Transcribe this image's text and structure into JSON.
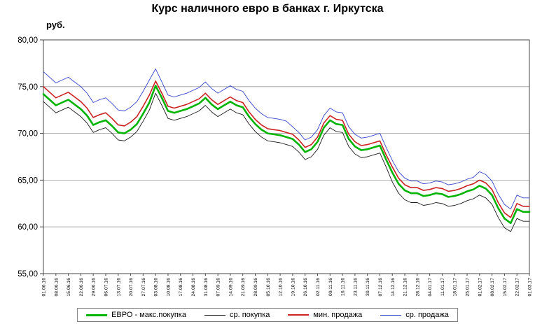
{
  "chart_data": {
    "type": "line",
    "title": "Курс наличного евро в банках г. Иркутска",
    "ylabel": "руб.",
    "ylim": [
      55,
      80
    ],
    "ytick_step": 5,
    "ytick_labels": [
      "55,00",
      "60,00",
      "65,00",
      "70,00",
      "75,00",
      "80,00"
    ],
    "grid": "horizontal",
    "legend_position": "bottom",
    "x_tick_labels": [
      "01.06.16",
      "08.06.16",
      "15.06.16",
      "22.06.16",
      "29.06.16",
      "06.07.16",
      "13.07.16",
      "20.07.16",
      "27.07.16",
      "03.08.16",
      "10.08.16",
      "17.08.16",
      "24.08.16",
      "31.08.16",
      "07.09.16",
      "14.09.16",
      "21.09.16",
      "28.09.16",
      "05.10.16",
      "12.10.16",
      "19.10.16",
      "26.10.16",
      "02.11.16",
      "09.11.16",
      "16.11.16",
      "23.11.16",
      "30.11.16",
      "07.12.16",
      "14.12.16",
      "21.12.16",
      "28.12.16",
      "04.01.17",
      "11.01.17",
      "18.01.17",
      "25.01.17",
      "01.02.17",
      "08.02.17",
      "15.02.17",
      "22.02.17",
      "01.03.17"
    ],
    "points_per_label": 2,
    "series": [
      {
        "name": "ЕВРО - макс.покупка",
        "slug": "evro-max-pokupka",
        "color": "#00b400",
        "width": 2.6,
        "values": [
          74.2,
          73.6,
          73.0,
          73.3,
          73.6,
          73.1,
          72.6,
          71.9,
          70.9,
          71.2,
          71.4,
          70.8,
          70.1,
          70.0,
          70.4,
          71.0,
          72.1,
          73.3,
          75.1,
          73.8,
          72.4,
          72.2,
          72.4,
          72.6,
          72.9,
          73.2,
          73.8,
          73.1,
          72.6,
          73.0,
          73.4,
          73.0,
          72.8,
          71.8,
          71.0,
          70.4,
          70.0,
          69.9,
          69.8,
          69.6,
          69.4,
          68.8,
          68.0,
          68.3,
          69.1,
          70.6,
          71.4,
          71.0,
          70.9,
          69.4,
          68.6,
          68.2,
          68.3,
          68.5,
          68.7,
          67.2,
          65.8,
          64.6,
          63.9,
          63.6,
          63.6,
          63.3,
          63.4,
          63.6,
          63.5,
          63.2,
          63.3,
          63.5,
          63.8,
          64.0,
          64.4,
          64.1,
          63.4,
          62.0,
          60.9,
          60.4,
          61.9,
          61.6,
          61.6
        ]
      },
      {
        "name": "ср. покупка",
        "slug": "sr-pokupka",
        "color": "#1a1a1a",
        "width": 0.9,
        "values": [
          73.4,
          72.8,
          72.2,
          72.5,
          72.8,
          72.3,
          71.8,
          71.1,
          70.1,
          70.4,
          70.6,
          70.0,
          69.3,
          69.2,
          69.6,
          70.2,
          71.3,
          72.5,
          74.3,
          73.0,
          71.6,
          71.4,
          71.6,
          71.8,
          72.1,
          72.4,
          73.0,
          72.3,
          71.8,
          72.2,
          72.6,
          72.2,
          72.0,
          71.0,
          70.2,
          69.6,
          69.2,
          69.1,
          69.0,
          68.8,
          68.6,
          68.0,
          67.2,
          67.5,
          68.3,
          69.8,
          70.6,
          70.2,
          70.1,
          68.6,
          67.8,
          67.4,
          67.5,
          67.7,
          67.9,
          66.4,
          64.8,
          63.6,
          62.9,
          62.6,
          62.6,
          62.3,
          62.4,
          62.6,
          62.5,
          62.2,
          62.3,
          62.5,
          62.8,
          63.0,
          63.4,
          63.1,
          62.4,
          61.0,
          59.9,
          59.5,
          60.9,
          60.6,
          60.6
        ]
      },
      {
        "name": "мин. продажа",
        "slug": "min-prodazha",
        "color": "#cc2222",
        "width": 1.6,
        "values": [
          75.0,
          74.4,
          73.8,
          74.1,
          74.4,
          73.9,
          73.4,
          72.7,
          71.7,
          72.0,
          72.2,
          71.6,
          70.9,
          70.8,
          71.2,
          71.8,
          72.9,
          74.1,
          75.6,
          74.3,
          72.9,
          72.7,
          72.9,
          73.1,
          73.4,
          73.7,
          74.3,
          73.6,
          73.1,
          73.5,
          73.9,
          73.5,
          73.3,
          72.3,
          71.5,
          70.9,
          70.5,
          70.4,
          70.3,
          70.1,
          69.9,
          69.3,
          68.5,
          68.8,
          69.6,
          71.1,
          71.9,
          71.5,
          71.4,
          69.9,
          69.1,
          68.7,
          68.8,
          69.0,
          69.2,
          67.7,
          66.4,
          65.2,
          64.5,
          64.2,
          64.2,
          63.9,
          64.0,
          64.2,
          64.1,
          63.8,
          63.9,
          64.1,
          64.4,
          64.6,
          65.0,
          64.7,
          64.0,
          62.6,
          61.5,
          61.0,
          62.5,
          62.2,
          62.2
        ]
      },
      {
        "name": "ср. продажа",
        "slug": "sr-prodazha",
        "color": "#3344cc",
        "width": 0.9,
        "values": [
          76.6,
          76.0,
          75.4,
          75.7,
          76.0,
          75.5,
          75.0,
          74.3,
          73.3,
          73.6,
          73.8,
          73.2,
          72.5,
          72.4,
          72.8,
          73.4,
          74.5,
          75.7,
          76.9,
          75.5,
          74.1,
          73.9,
          74.1,
          74.3,
          74.6,
          74.9,
          75.5,
          74.8,
          74.3,
          74.7,
          75.1,
          74.7,
          74.5,
          73.5,
          72.7,
          72.1,
          71.7,
          71.6,
          71.5,
          71.3,
          70.7,
          70.1,
          69.3,
          69.6,
          70.4,
          71.9,
          72.7,
          72.3,
          72.2,
          70.7,
          69.9,
          69.5,
          69.6,
          69.8,
          70.0,
          68.5,
          67.1,
          65.9,
          65.2,
          64.9,
          64.9,
          64.6,
          64.7,
          64.9,
          64.8,
          64.5,
          64.6,
          64.8,
          65.1,
          65.3,
          65.9,
          65.6,
          64.9,
          63.5,
          62.4,
          61.9,
          63.4,
          63.1,
          63.1
        ]
      }
    ]
  }
}
